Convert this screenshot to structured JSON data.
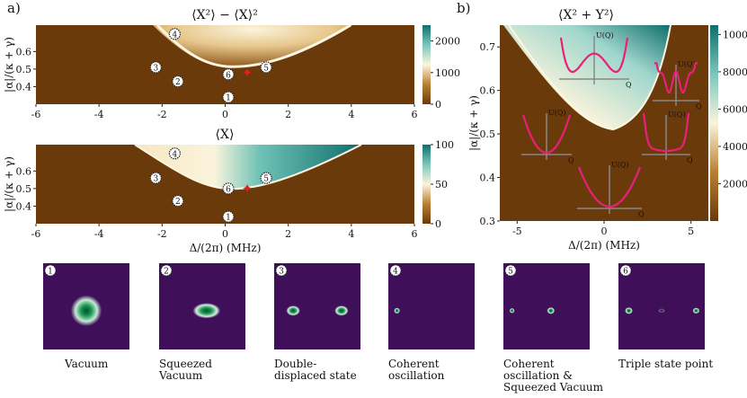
{
  "panel_labels": {
    "a": "a)",
    "b": "b)"
  },
  "colormap": {
    "low": "#6b3a0a",
    "mid": "#fbf4dc",
    "high": "#0f7a78"
  },
  "chart_data": [
    {
      "type": "heatmap",
      "id": "a-top",
      "title": "⟨X²⟩ − ⟨X⟩²",
      "xlabel": "",
      "ylabel": "|α|/(κ + γ)",
      "xlim": [
        -6,
        6
      ],
      "ylim": [
        0.3,
        0.75
      ],
      "xticks": [
        "-6",
        "-4",
        "-2",
        "0",
        "2",
        "4",
        "6"
      ],
      "yticks": [
        "0.4",
        "0.5",
        "0.6"
      ],
      "colorbar_ticks": [
        "0",
        "1000",
        "2000"
      ],
      "colorbar_range": [
        0,
        2500
      ],
      "markers": [
        {
          "label": "1",
          "x": 0.1,
          "y": 0.34
        },
        {
          "label": "2",
          "x": -1.5,
          "y": 0.43
        },
        {
          "label": "3",
          "x": -2.2,
          "y": 0.51
        },
        {
          "label": "4",
          "x": -1.6,
          "y": 0.7
        },
        {
          "label": "5",
          "x": 1.3,
          "y": 0.51
        },
        {
          "label": "6",
          "x": 0.1,
          "y": 0.47
        }
      ],
      "star": {
        "x": 0.7,
        "y": 0.48
      }
    },
    {
      "type": "heatmap",
      "id": "a-bottom",
      "title": "⟨X⟩",
      "xlabel": "Δ/(2π) (MHz)",
      "ylabel": "|α|/(κ + γ)",
      "xlim": [
        -6,
        6
      ],
      "ylim": [
        0.3,
        0.75
      ],
      "xticks": [
        "-6",
        "-4",
        "-2",
        "0",
        "2",
        "4",
        "6"
      ],
      "yticks": [
        "0.4",
        "0.5",
        "0.6"
      ],
      "colorbar_ticks": [
        "0",
        "50",
        "100"
      ],
      "colorbar_range": [
        0,
        100
      ],
      "markers": [
        {
          "label": "1",
          "x": 0.1,
          "y": 0.34
        },
        {
          "label": "2",
          "x": -1.5,
          "y": 0.43
        },
        {
          "label": "3",
          "x": -2.2,
          "y": 0.56
        },
        {
          "label": "4",
          "x": -1.6,
          "y": 0.7
        },
        {
          "label": "5",
          "x": 1.3,
          "y": 0.56
        },
        {
          "label": "6",
          "x": 0.1,
          "y": 0.5
        }
      ],
      "star": {
        "x": 0.7,
        "y": 0.5
      }
    },
    {
      "type": "heatmap",
      "id": "b",
      "title": "⟨X² + Y²⟩",
      "xlabel": "Δ/(2π) (MHz)",
      "ylabel": "|α|/(κ + γ)",
      "xlim": [
        -6,
        6
      ],
      "ylim": [
        0.3,
        0.75
      ],
      "xticks": [
        "-5",
        "0",
        "5"
      ],
      "yticks": [
        "0.3",
        "0.4",
        "0.5",
        "0.6",
        "0.7"
      ],
      "colorbar_ticks": [
        "2000",
        "4000",
        "6000",
        "8000",
        "10000"
      ],
      "colorbar_range": [
        0,
        10500
      ],
      "potential_insets": [
        {
          "label": "U(Q)",
          "axis": "Q",
          "shape": "double-well"
        },
        {
          "label": "U(Q)",
          "axis": "Q",
          "shape": "triple-well"
        },
        {
          "label": "U(Q)",
          "axis": "Q",
          "shape": "single-well"
        },
        {
          "label": "U(Q)",
          "axis": "Q",
          "shape": "flat-bottom"
        },
        {
          "label": "U(Q)",
          "axis": "Q",
          "shape": "single-well"
        }
      ]
    }
  ],
  "wigner_panels": [
    {
      "num": "1",
      "caption": [
        "Vacuum"
      ]
    },
    {
      "num": "2",
      "caption": [
        "Squeezed",
        "Vacuum"
      ]
    },
    {
      "num": "3",
      "caption": [
        "Double-",
        "displaced state"
      ]
    },
    {
      "num": "4",
      "caption": [
        "Coherent",
        "oscillation"
      ]
    },
    {
      "num": "5",
      "caption": [
        "Coherent",
        "oscillation &",
        "Squeezed Vacuum"
      ]
    },
    {
      "num": "6",
      "caption": [
        "Triple state point"
      ]
    }
  ]
}
